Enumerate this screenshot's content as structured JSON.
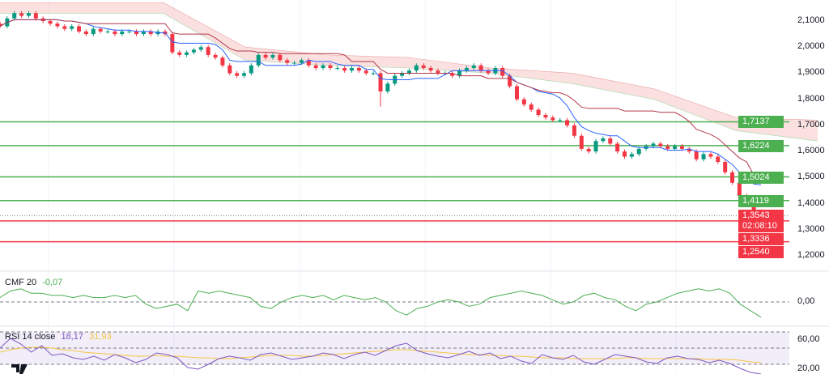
{
  "chart_data": {
    "type": "candlestick",
    "price_axis": {
      "ticks": [
        "2,1000",
        "2,0000",
        "1,9000",
        "1,8000",
        "1,7000",
        "1,6000",
        "1,5000",
        "1,4000",
        "1,3000",
        "1,2000"
      ],
      "values": [
        2.1,
        2.0,
        1.9,
        1.8,
        1.7,
        1.6,
        1.5,
        1.4,
        1.3,
        1.2
      ]
    },
    "closes": [
      2.08,
      2.11,
      2.13,
      2.12,
      2.13,
      2.11,
      2.1,
      2.09,
      2.08,
      2.07,
      2.08,
      2.06,
      2.05,
      2.07,
      2.06,
      2.06,
      2.05,
      2.06,
      2.06,
      2.05,
      2.06,
      2.05,
      2.06,
      2.05,
      1.98,
      1.97,
      1.98,
      1.99,
      2.0,
      1.97,
      1.96,
      1.93,
      1.9,
      1.89,
      1.9,
      1.93,
      1.97,
      1.96,
      1.97,
      1.95,
      1.94,
      1.94,
      1.95,
      1.93,
      1.92,
      1.93,
      1.92,
      1.92,
      1.91,
      1.92,
      1.91,
      1.9,
      1.9,
      1.83,
      1.86,
      1.89,
      1.9,
      1.91,
      1.93,
      1.92,
      1.91,
      1.9,
      1.9,
      1.89,
      1.91,
      1.92,
      1.93,
      1.91,
      1.9,
      1.92,
      1.89,
      1.85,
      1.8,
      1.78,
      1.76,
      1.74,
      1.73,
      1.72,
      1.72,
      1.7,
      1.66,
      1.61,
      1.6,
      1.64,
      1.65,
      1.63,
      1.6,
      1.58,
      1.59,
      1.61,
      1.62,
      1.63,
      1.62,
      1.61,
      1.62,
      1.61,
      1.6,
      1.57,
      1.59,
      1.58,
      1.56,
      1.52,
      1.48,
      1.43,
      1.42,
      1.36,
      1.3543
    ],
    "levels_support_resistance": [
      {
        "label": "1,7137",
        "value": 1.7137,
        "color": "#4caf50"
      },
      {
        "label": "1,6224",
        "value": 1.6224,
        "color": "#4caf50"
      },
      {
        "label": "1,5024",
        "value": 1.5024,
        "color": "#4caf50"
      },
      {
        "label": "1,4119",
        "value": 1.4119,
        "color": "#4caf50"
      },
      {
        "label": "1,3336",
        "value": 1.3336,
        "color": "#f23645"
      },
      {
        "label": "1,2540",
        "value": 1.254,
        "color": "#f23645"
      }
    ],
    "current_price": {
      "label": "1,3543",
      "value": 1.3543,
      "countdown": "02:08:10",
      "color": "#f23645"
    },
    "ichimoku_cloud": {
      "upper": [
        2.17,
        2.17,
        2.17,
        2.0,
        1.97,
        1.96,
        1.92,
        1.9,
        1.84,
        1.73,
        1.72
      ],
      "lower": [
        2.13,
        2.13,
        2.13,
        1.95,
        1.93,
        1.92,
        1.9,
        1.86,
        1.8,
        1.68,
        1.64
      ],
      "color": "#f7c6c6"
    },
    "cmf": {
      "label": "CMF 20",
      "value": "-0,07",
      "axis_label": "0,00",
      "values": [
        0.02,
        0.05,
        0.06,
        0.04,
        0.04,
        0.03,
        0.03,
        0.02,
        0.03,
        0.02,
        0.02,
        0.03,
        0.02,
        0.03,
        -0.01,
        -0.03,
        -0.02,
        -0.01,
        -0.04,
        0.05,
        0.04,
        0.05,
        0.04,
        0.03,
        0.02,
        -0.02,
        -0.03,
        0.0,
        0.02,
        0.03,
        0.02,
        0.03,
        0.01,
        0.03,
        0.02,
        0.01,
        0.02,
        0.0,
        -0.04,
        -0.06,
        -0.03,
        -0.02,
        0.0,
        0.01,
        0.0,
        -0.02,
        -0.01,
        0.02,
        0.03,
        0.04,
        0.05,
        0.04,
        0.03,
        0.01,
        -0.01,
        0.0,
        0.03,
        0.04,
        0.02,
        0.01,
        -0.02,
        -0.04,
        -0.01,
        0.0,
        0.02,
        0.04,
        0.05,
        0.06,
        0.05,
        0.06,
        0.04,
        -0.01,
        -0.04,
        -0.07
      ]
    },
    "rsi": {
      "label": "RSI 14 close",
      "value": "18,17",
      "ma_value": "31,93",
      "axis_labels": [
        "60,00",
        "20,00"
      ],
      "values": [
        50,
        62,
        55,
        45,
        53,
        41,
        43,
        38,
        36,
        40,
        35,
        42,
        38,
        32,
        36,
        44,
        42,
        38,
        26,
        24,
        30,
        37,
        40,
        38,
        35,
        42,
        44,
        40,
        36,
        38,
        40,
        44,
        42,
        37,
        42,
        45,
        41,
        47,
        53,
        56,
        47,
        43,
        40,
        38,
        42,
        46,
        41,
        44,
        37,
        40,
        34,
        31,
        42,
        38,
        36,
        41,
        33,
        30,
        36,
        42,
        40,
        38,
        33,
        31,
        38,
        40,
        37,
        36,
        32,
        35,
        31,
        25,
        20,
        18
      ],
      "ma": [
        45,
        48,
        50,
        51,
        51,
        50,
        48,
        47,
        45,
        44,
        43,
        42,
        41,
        40,
        40,
        41,
        40,
        40,
        39,
        38,
        38,
        37,
        37,
        38,
        39,
        40,
        41,
        41,
        41,
        40,
        40,
        41,
        42,
        43,
        44,
        45,
        46,
        47,
        48,
        48,
        47,
        46,
        45,
        44,
        43,
        42,
        42,
        41,
        41,
        40,
        40,
        39,
        38,
        38,
        38,
        37,
        37,
        37,
        37,
        37,
        38,
        38,
        37,
        37,
        37,
        37,
        37,
        37,
        36,
        36,
        36,
        35,
        33,
        32
      ],
      "color": "#7e57c2",
      "ma_color": "#f5c542"
    }
  }
}
